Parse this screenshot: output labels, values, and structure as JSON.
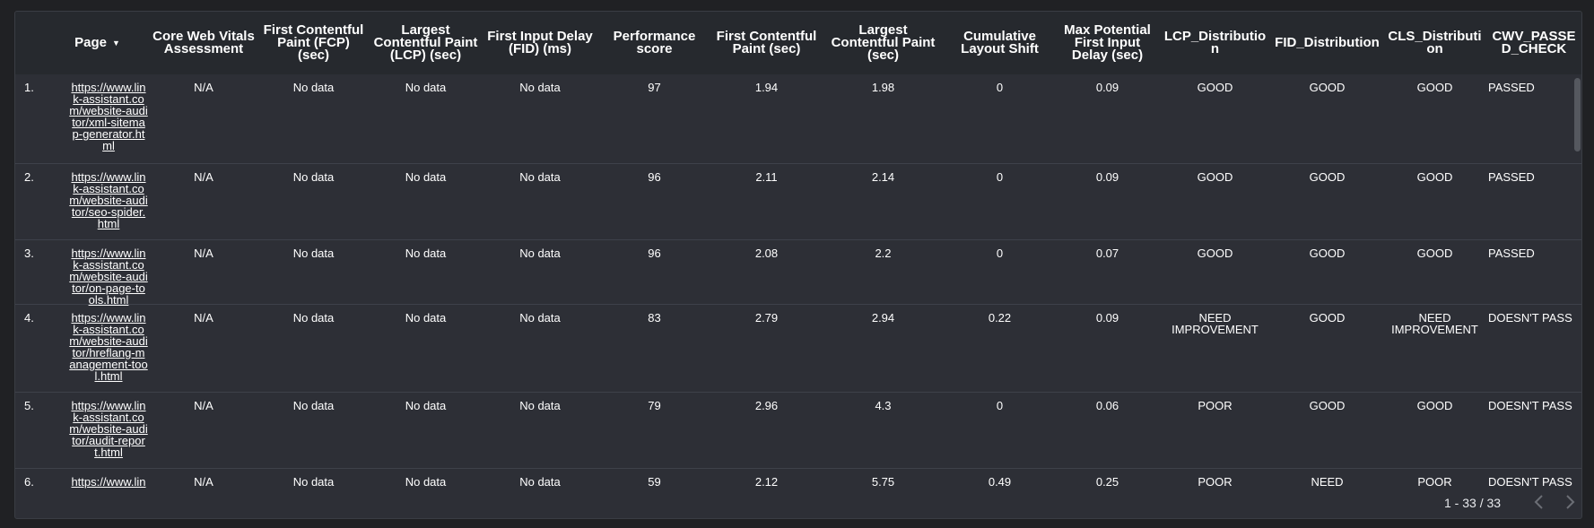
{
  "columns": [
    {
      "label": "Page",
      "sorted": true
    },
    {
      "label": "Core Web Vitals Assessment"
    },
    {
      "label": "First Contentful Paint (FCP) (sec)"
    },
    {
      "label": "Largest Contentful Paint (LCP) (sec)"
    },
    {
      "label": "First Input Delay (FID) (ms)"
    },
    {
      "label": "Performance score"
    },
    {
      "label": "First Contentful Paint (sec)"
    },
    {
      "label": "Largest Contentful Paint (sec)"
    },
    {
      "label": "Cumulative Layout Shift"
    },
    {
      "label": "Max Potential First Input Delay (sec)"
    },
    {
      "label": "LCP_Distribution"
    },
    {
      "label": "FID_Distribution"
    },
    {
      "label": "CLS_Distribution"
    },
    {
      "label": "CWV_PASSED_CHECK"
    }
  ],
  "rows": [
    {
      "index": "1.",
      "page": "https://www.link-assistant.com/website-auditor/xml-sitemap-generator.html",
      "cwv": "N/A",
      "fcp_field": "No data",
      "lcp_field": "No data",
      "fid_field": "No data",
      "score": "97",
      "fcp": "1.94",
      "lcp": "1.98",
      "cls": "0",
      "max_fid": "0.09",
      "lcp_dist": "GOOD",
      "fid_dist": "GOOD",
      "cls_dist": "GOOD",
      "passed": "PASSED"
    },
    {
      "index": "2.",
      "page": "https://www.link-assistant.com/website-auditor/seo-spider.html",
      "cwv": "N/A",
      "fcp_field": "No data",
      "lcp_field": "No data",
      "fid_field": "No data",
      "score": "96",
      "fcp": "2.11",
      "lcp": "2.14",
      "cls": "0",
      "max_fid": "0.09",
      "lcp_dist": "GOOD",
      "fid_dist": "GOOD",
      "cls_dist": "GOOD",
      "passed": "PASSED"
    },
    {
      "index": "3.",
      "page": "https://www.link-assistant.com/website-auditor/on-page-tools.html",
      "cwv": "N/A",
      "fcp_field": "No data",
      "lcp_field": "No data",
      "fid_field": "No data",
      "score": "96",
      "fcp": "2.08",
      "lcp": "2.2",
      "cls": "0",
      "max_fid": "0.07",
      "lcp_dist": "GOOD",
      "fid_dist": "GOOD",
      "cls_dist": "GOOD",
      "passed": "PASSED"
    },
    {
      "index": "4.",
      "page": "https://www.link-assistant.com/website-auditor/hreflang-management-tool.html",
      "cwv": "N/A",
      "fcp_field": "No data",
      "lcp_field": "No data",
      "fid_field": "No data",
      "score": "83",
      "fcp": "2.79",
      "lcp": "2.94",
      "cls": "0.22",
      "max_fid": "0.09",
      "lcp_dist": "NEED IMPROVEMENT",
      "fid_dist": "GOOD",
      "cls_dist": "NEED IMPROVEMENT",
      "passed": "DOESN'T PASS"
    },
    {
      "index": "5.",
      "page": "https://www.link-assistant.com/website-auditor/audit-report.html",
      "cwv": "N/A",
      "fcp_field": "No data",
      "lcp_field": "No data",
      "fid_field": "No data",
      "score": "79",
      "fcp": "2.96",
      "lcp": "4.3",
      "cls": "0",
      "max_fid": "0.06",
      "lcp_dist": "POOR",
      "fid_dist": "GOOD",
      "cls_dist": "GOOD",
      "passed": "DOESN'T PASS"
    },
    {
      "index": "6.",
      "page": "https://www.link-assistant.com/website-auditor/",
      "cwv": "N/A",
      "fcp_field": "No data",
      "lcp_field": "No data",
      "fid_field": "No data",
      "score": "59",
      "fcp": "2.12",
      "lcp": "5.75",
      "cls": "0.49",
      "max_fid": "0.25",
      "lcp_dist": "POOR",
      "fid_dist": "NEED IMPROVEMENT",
      "cls_dist": "POOR",
      "passed": "DOESN'T PASS"
    }
  ],
  "pagination": {
    "range": "1 - 33 / 33"
  },
  "icons": {
    "sort": "caret-down-icon",
    "prev": "chevron-left-icon",
    "next": "chevron-right-icon"
  },
  "colors": {
    "page_bg": "#202124",
    "panel_bg": "#2d2f36",
    "header_bg": "#26292e",
    "text": "#ffffff",
    "muted": "#6b6e75"
  }
}
